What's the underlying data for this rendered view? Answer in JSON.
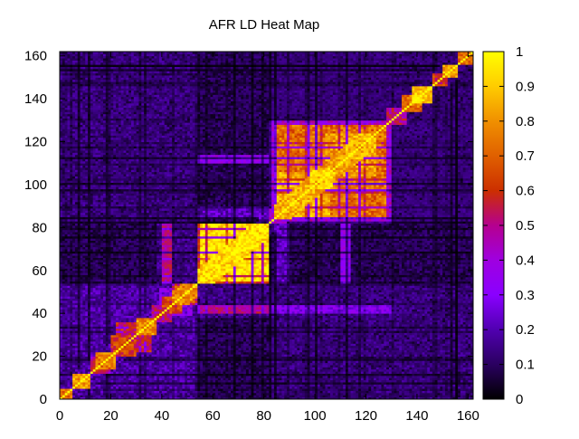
{
  "chart_data": {
    "type": "heatmap",
    "title": "AFR LD Heat Map",
    "xlabel": "",
    "ylabel": "",
    "size": 162,
    "xlim": [
      0,
      162
    ],
    "ylim": [
      0,
      162
    ],
    "x_ticks": [
      "0",
      "20",
      "40",
      "60",
      "80",
      "100",
      "120",
      "140",
      "160"
    ],
    "y_ticks": [
      "0",
      "20",
      "40",
      "60",
      "80",
      "100",
      "120",
      "140",
      "160"
    ],
    "x_tick_values": [
      0,
      20,
      40,
      60,
      80,
      100,
      120,
      140,
      160
    ],
    "y_tick_values": [
      0,
      20,
      40,
      60,
      80,
      100,
      120,
      140,
      160
    ],
    "colorbar": {
      "min": 0,
      "max": 1,
      "ticks": [
        "0",
        "0.1",
        "0.2",
        "0.3",
        "0.4",
        "0.5",
        "0.6",
        "0.7",
        "0.8",
        "0.9",
        "1"
      ],
      "tick_values": [
        0,
        0.1,
        0.2,
        0.3,
        0.4,
        0.5,
        0.6,
        0.7,
        0.8,
        0.9,
        1
      ],
      "colormap": [
        "#000000",
        "#2a0060",
        "#5000b0",
        "#8a00ff",
        "#9f00e0",
        "#b5008f",
        "#cc2f00",
        "#e06000",
        "#f09000",
        "#ffcc00",
        "#ffff00"
      ]
    },
    "diagonal_value": 1,
    "blocks": [
      {
        "start": 0,
        "end": 5,
        "value": 0.72
      },
      {
        "start": 5,
        "end": 12,
        "value": 0.82
      },
      {
        "start": 12,
        "end": 20,
        "value": 0.55
      },
      {
        "start": 14,
        "end": 22,
        "value": 0.74
      },
      {
        "start": 20,
        "end": 30,
        "value": 0.62
      },
      {
        "start": 22,
        "end": 36,
        "value": 0.55
      },
      {
        "start": 30,
        "end": 38,
        "value": 0.78
      },
      {
        "start": 36,
        "end": 44,
        "value": 0.48
      },
      {
        "start": 39,
        "end": 52,
        "value": 0.3
      },
      {
        "start": 40,
        "end": 48,
        "value": 0.62
      },
      {
        "start": 44,
        "end": 54,
        "value": 0.78
      },
      {
        "start": 54,
        "end": 82,
        "value": 0.94
      },
      {
        "start": 82,
        "end": 130,
        "value": 0.4
      },
      {
        "start": 84,
        "end": 128,
        "value": 0.72
      },
      {
        "start": 84,
        "end": 106,
        "value": 0.85
      },
      {
        "start": 98,
        "end": 108,
        "value": 0.9
      },
      {
        "start": 104,
        "end": 124,
        "value": 0.8
      },
      {
        "start": 112,
        "end": 124,
        "value": 0.86
      },
      {
        "start": 128,
        "end": 136,
        "value": 0.5
      },
      {
        "start": 134,
        "end": 142,
        "value": 0.72
      },
      {
        "start": 138,
        "end": 146,
        "value": 0.9
      },
      {
        "start": 146,
        "end": 152,
        "value": 0.6
      },
      {
        "start": 150,
        "end": 156,
        "value": 0.85
      },
      {
        "start": 156,
        "end": 162,
        "value": 0.75
      }
    ],
    "off_blocks": [
      {
        "x_start": 0,
        "x_end": 54,
        "y_start": 0,
        "y_end": 54,
        "value": 0.18
      },
      {
        "x_start": 38,
        "x_end": 54,
        "y_start": 54,
        "y_end": 82,
        "value": 0.14
      },
      {
        "x_start": 54,
        "x_end": 82,
        "y_start": 38,
        "y_end": 54,
        "value": 0.14
      },
      {
        "x_start": 82,
        "x_end": 162,
        "y_start": 0,
        "y_end": 54,
        "value": 0.12
      },
      {
        "x_start": 0,
        "x_end": 54,
        "y_start": 82,
        "y_end": 162,
        "value": 0.12
      },
      {
        "x_start": 82,
        "x_end": 162,
        "y_start": 82,
        "y_end": 162,
        "value": 0.1
      },
      {
        "x_start": 82,
        "x_end": 130,
        "y_start": 130,
        "y_end": 162,
        "value": 0.08
      },
      {
        "x_start": 130,
        "x_end": 162,
        "y_start": 82,
        "y_end": 130,
        "value": 0.08
      },
      {
        "x_start": 40,
        "x_end": 44,
        "y_start": 54,
        "y_end": 82,
        "value": 0.5
      },
      {
        "x_start": 54,
        "x_end": 82,
        "y_start": 40,
        "y_end": 44,
        "value": 0.5
      },
      {
        "x_start": 82,
        "x_end": 130,
        "y_start": 40,
        "y_end": 44,
        "value": 0.3
      },
      {
        "x_start": 54,
        "x_end": 82,
        "y_start": 110,
        "y_end": 114,
        "value": 0.35
      },
      {
        "x_start": 110,
        "x_end": 114,
        "y_start": 54,
        "y_end": 82,
        "value": 0.35
      },
      {
        "x_start": 54,
        "x_end": 82,
        "y_start": 84,
        "y_end": 90,
        "value": 0.22
      },
      {
        "x_start": 84,
        "x_end": 90,
        "y_start": 54,
        "y_end": 82,
        "value": 0.22
      }
    ]
  }
}
